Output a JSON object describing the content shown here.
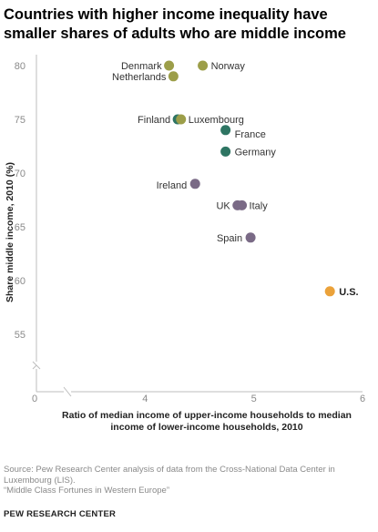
{
  "title": "Countries with higher income inequality have smaller shares of adults who are middle income",
  "source_line1": "Source: Pew Research Center analysis of data from the Cross-National Data Center in Luxembourg (LIS).",
  "source_line2": "“Middle Class Fortunes in Western Europe”",
  "org": "PEW RESEARCH CENTER",
  "colors": {
    "green": "#2e7563",
    "olive": "#9c9e49",
    "purple": "#7a6a86",
    "gold": "#eba23a"
  },
  "chart_data": {
    "type": "scatter",
    "xlabel": "Ratio of median income of upper-income households to median income of lower-income households, 2010",
    "ylabel": "Share middle income, 2010 (%)",
    "xlim": [
      3,
      6
    ],
    "ylim": [
      55,
      80
    ],
    "x_ticks": [
      4,
      5,
      6
    ],
    "y_ticks": [
      55,
      60,
      65,
      70,
      75,
      80
    ],
    "axis_break_labels": {
      "x": "0",
      "y": "0"
    },
    "grid": false,
    "points": [
      {
        "label": "Denmark",
        "x": 4.22,
        "y": 80,
        "color": "olive"
      },
      {
        "label": "Norway",
        "x": 4.53,
        "y": 80,
        "color": "olive"
      },
      {
        "label": "Netherlands",
        "x": 4.26,
        "y": 79,
        "color": "olive"
      },
      {
        "label": "Finland",
        "x": 4.3,
        "y": 75,
        "color": "green"
      },
      {
        "label": "Luxembourg",
        "x": 4.33,
        "y": 75,
        "color": "olive"
      },
      {
        "label": "France",
        "x": 4.74,
        "y": 74,
        "color": "green"
      },
      {
        "label": "Germany",
        "x": 4.74,
        "y": 72,
        "color": "green"
      },
      {
        "label": "Ireland",
        "x": 4.46,
        "y": 69,
        "color": "purple"
      },
      {
        "label": "UK",
        "x": 4.85,
        "y": 67,
        "color": "purple"
      },
      {
        "label": "Italy",
        "x": 4.89,
        "y": 67,
        "color": "purple"
      },
      {
        "label": "Spain",
        "x": 4.97,
        "y": 64,
        "color": "purple"
      },
      {
        "label": "U.S.",
        "x": 5.7,
        "y": 59,
        "color": "gold",
        "bold": true
      }
    ]
  }
}
